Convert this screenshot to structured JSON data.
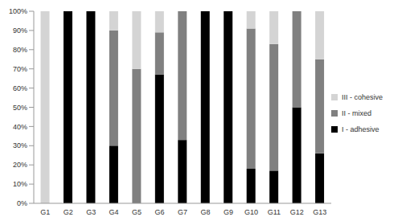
{
  "chart_data": {
    "type": "bar",
    "stacked": true,
    "grid": false,
    "legend": "right",
    "categories": [
      "G1",
      "G2",
      "G3",
      "G4",
      "G5",
      "G6",
      "G7",
      "G8",
      "G9",
      "G10",
      "G11",
      "G12",
      "G13"
    ],
    "series": [
      {
        "name": "I - adhesive",
        "color": "#000000",
        "values": [
          0,
          100,
          100,
          30,
          0,
          67,
          33,
          100,
          100,
          18,
          17,
          50,
          26
        ]
      },
      {
        "name": "II - mixed",
        "color": "#808080",
        "values": [
          0,
          0,
          0,
          60,
          70,
          22,
          67,
          0,
          0,
          73,
          66,
          50,
          49
        ]
      },
      {
        "name": "III - cohesive",
        "color": "#d4d4d4",
        "values": [
          100,
          0,
          0,
          10,
          30,
          11,
          0,
          0,
          0,
          9,
          17,
          0,
          25
        ]
      }
    ],
    "ylim": [
      0,
      100
    ],
    "yticks": [
      {
        "value": 0,
        "label": "0%"
      },
      {
        "value": 10,
        "label": "10%"
      },
      {
        "value": 20,
        "label": "20%"
      },
      {
        "value": 30,
        "label": "30%"
      },
      {
        "value": 40,
        "label": "40%"
      },
      {
        "value": 50,
        "label": "50%"
      },
      {
        "value": 60,
        "label": "60%"
      },
      {
        "value": 70,
        "label": "70%"
      },
      {
        "value": 80,
        "label": "80%"
      },
      {
        "value": 90,
        "label": "90%"
      },
      {
        "value": 100,
        "label": "100%"
      }
    ]
  }
}
